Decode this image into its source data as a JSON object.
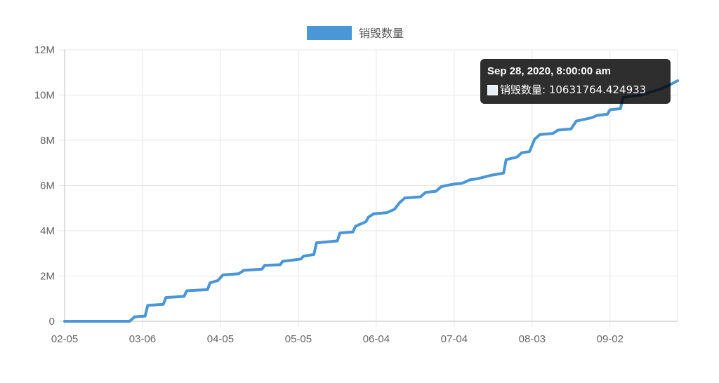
{
  "chart_data": {
    "type": "line",
    "legend": {
      "label": "销毁数量",
      "color": "#4a96d6",
      "position": "top"
    },
    "x_ticks": [
      "02-05",
      "03-06",
      "04-05",
      "05-05",
      "06-04",
      "07-04",
      "08-03",
      "09-02"
    ],
    "x_tick_dates": [
      "2020-02-05",
      "2020-03-06",
      "2020-04-05",
      "2020-05-05",
      "2020-06-04",
      "2020-07-04",
      "2020-08-03",
      "2020-09-02"
    ],
    "x_range": [
      "2020-02-05",
      "2020-09-28"
    ],
    "y_ticks": [
      "0",
      "2M",
      "4M",
      "6M",
      "8M",
      "10M",
      "12M"
    ],
    "ylim": [
      0,
      12000000
    ],
    "grid": true,
    "series": [
      {
        "name": "销毁数量",
        "color": "#4a96d6",
        "points": [
          [
            "2020-02-05",
            0
          ],
          [
            "2020-03-01",
            0
          ],
          [
            "2020-03-03",
            200000
          ],
          [
            "2020-03-07",
            230000
          ],
          [
            "2020-03-08",
            700000
          ],
          [
            "2020-03-14",
            750000
          ],
          [
            "2020-03-15",
            1050000
          ],
          [
            "2020-03-22",
            1100000
          ],
          [
            "2020-03-23",
            1350000
          ],
          [
            "2020-03-31",
            1400000
          ],
          [
            "2020-04-01",
            1700000
          ],
          [
            "2020-04-04",
            1800000
          ],
          [
            "2020-04-06",
            2050000
          ],
          [
            "2020-04-12",
            2100000
          ],
          [
            "2020-04-14",
            2250000
          ],
          [
            "2020-04-21",
            2300000
          ],
          [
            "2020-04-22",
            2470000
          ],
          [
            "2020-04-28",
            2500000
          ],
          [
            "2020-04-29",
            2650000
          ],
          [
            "2020-05-06",
            2750000
          ],
          [
            "2020-05-07",
            2880000
          ],
          [
            "2020-05-11",
            2950000
          ],
          [
            "2020-05-12",
            3470000
          ],
          [
            "2020-05-20",
            3550000
          ],
          [
            "2020-05-21",
            3900000
          ],
          [
            "2020-05-26",
            3950000
          ],
          [
            "2020-05-27",
            4200000
          ],
          [
            "2020-05-31",
            4400000
          ],
          [
            "2020-06-01",
            4600000
          ],
          [
            "2020-06-03",
            4750000
          ],
          [
            "2020-06-08",
            4800000
          ],
          [
            "2020-06-11",
            4950000
          ],
          [
            "2020-06-13",
            5250000
          ],
          [
            "2020-06-15",
            5450000
          ],
          [
            "2020-06-21",
            5500000
          ],
          [
            "2020-06-23",
            5700000
          ],
          [
            "2020-06-27",
            5750000
          ],
          [
            "2020-06-29",
            5950000
          ],
          [
            "2020-07-03",
            6050000
          ],
          [
            "2020-07-07",
            6100000
          ],
          [
            "2020-07-10",
            6250000
          ],
          [
            "2020-07-13",
            6300000
          ],
          [
            "2020-07-18",
            6450000
          ],
          [
            "2020-07-23",
            6550000
          ],
          [
            "2020-07-24",
            7150000
          ],
          [
            "2020-07-28",
            7250000
          ],
          [
            "2020-07-30",
            7450000
          ],
          [
            "2020-08-02",
            7500000
          ],
          [
            "2020-08-04",
            8050000
          ],
          [
            "2020-08-06",
            8250000
          ],
          [
            "2020-08-11",
            8300000
          ],
          [
            "2020-08-13",
            8450000
          ],
          [
            "2020-08-18",
            8500000
          ],
          [
            "2020-08-20",
            8850000
          ],
          [
            "2020-08-26",
            9000000
          ],
          [
            "2020-08-28",
            9100000
          ],
          [
            "2020-09-01",
            9150000
          ],
          [
            "2020-09-02",
            9350000
          ],
          [
            "2020-09-06",
            9400000
          ],
          [
            "2020-09-07",
            9900000
          ],
          [
            "2020-09-14",
            10000000
          ],
          [
            "2020-09-21",
            10250000
          ],
          [
            "2020-09-25",
            10450000
          ],
          [
            "2020-09-28",
            10631764.424933
          ]
        ]
      }
    ],
    "tooltip": {
      "title": "Sep 28, 2020, 8:00:00 am",
      "label": "销毁数量: 10631764.424933",
      "date": "2020-09-28",
      "value": 10631764.424933
    }
  }
}
